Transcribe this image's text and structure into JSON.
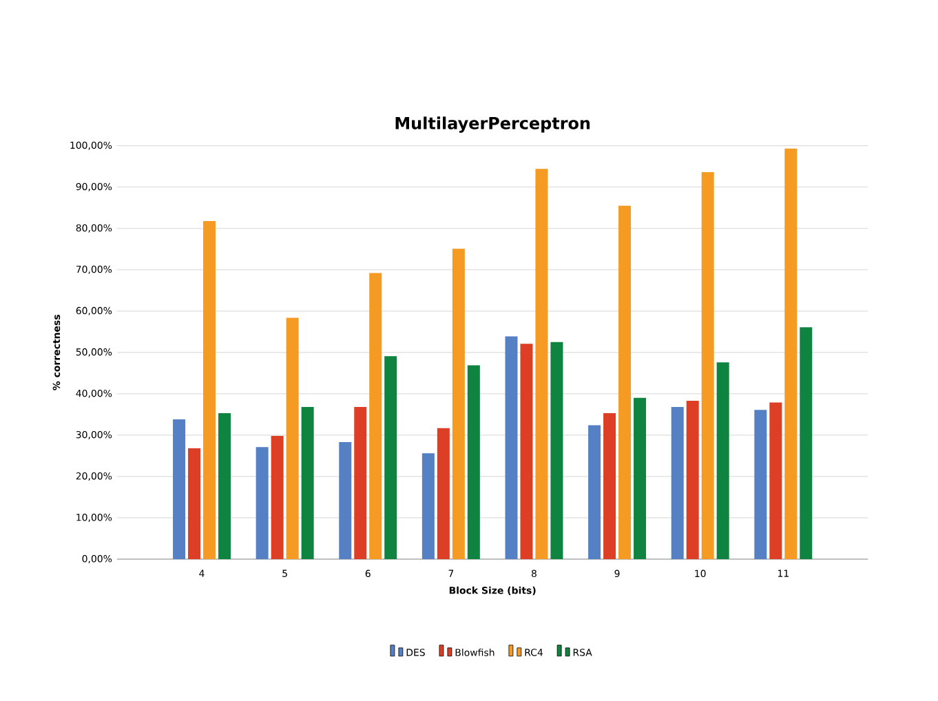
{
  "chart_data": {
    "type": "bar",
    "title": "MultilayerPerceptron",
    "xlabel": "Block Size (bits)",
    "ylabel": "% correctness",
    "categories": [
      "4",
      "5",
      "6",
      "7",
      "8",
      "9",
      "10",
      "11"
    ],
    "series": [
      {
        "name": "DES",
        "color": "#5580c4",
        "values": [
          33.8,
          27.1,
          28.3,
          25.6,
          53.9,
          32.4,
          36.8,
          36.1
        ]
      },
      {
        "name": "Blowfish",
        "color": "#dc3e26",
        "values": [
          26.8,
          29.8,
          36.8,
          31.7,
          52.1,
          35.3,
          38.3,
          37.9
        ]
      },
      {
        "name": "RC4",
        "color": "#f59a23",
        "values": [
          81.8,
          58.4,
          69.2,
          75.1,
          94.4,
          85.5,
          93.6,
          99.3
        ]
      },
      {
        "name": "RSA",
        "color": "#0f8340",
        "values": [
          35.3,
          36.8,
          49.1,
          46.9,
          52.5,
          39.0,
          47.6,
          56.1
        ]
      }
    ],
    "ylim": [
      0,
      100
    ],
    "yticks": [
      {
        "value": 0,
        "label": "0,00%"
      },
      {
        "value": 10,
        "label": "10,00%"
      },
      {
        "value": 20,
        "label": "20,00%"
      },
      {
        "value": 30,
        "label": "30,00%"
      },
      {
        "value": 40,
        "label": "40,00%"
      },
      {
        "value": 50,
        "label": "50,00%"
      },
      {
        "value": 60,
        "label": "60,00%"
      },
      {
        "value": 70,
        "label": "70,00%"
      },
      {
        "value": 80,
        "label": "80,00%"
      },
      {
        "value": 90,
        "label": "90,00%"
      },
      {
        "value": 100,
        "label": "100,00%"
      }
    ],
    "grid": "y",
    "legend": "bottom"
  }
}
